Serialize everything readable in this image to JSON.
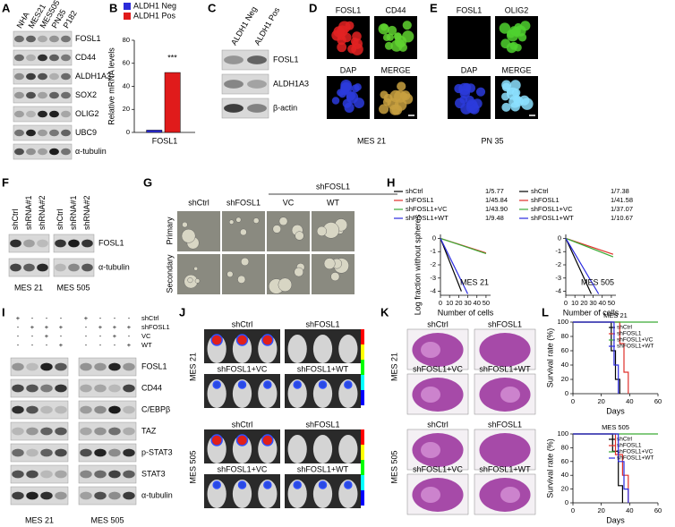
{
  "panels": {
    "A": {
      "letter": "A",
      "lanes": [
        "NHA",
        "MES21",
        "MES505",
        "PN35",
        "P182"
      ],
      "bands": [
        "FOSL1",
        "CD44",
        "ALDH1A3",
        "SOX2",
        "OLIG2",
        "UBC9",
        "α-tubulin"
      ]
    },
    "B": {
      "letter": "B"
    },
    "C": {
      "letter": "C",
      "lanes": [
        "ALDH1 Neg",
        "ALDH1 Pos"
      ],
      "bands": [
        "FOSL1",
        "ALDH1A3",
        "β-actin"
      ]
    },
    "D": {
      "letter": "D",
      "labels": [
        "FOSL1",
        "CD44",
        "DAP",
        "MERGE"
      ],
      "caption": "MES 21"
    },
    "E": {
      "letter": "E",
      "labels": [
        "FOSL1",
        "OLIG2",
        "DAP",
        "MERGE"
      ],
      "caption": "PN 35"
    },
    "F": {
      "letter": "F",
      "lanes": [
        "shCtrl",
        "shRNA#1",
        "shRNA#2",
        "shCtrl",
        "shRNA#1",
        "shRNA#2"
      ],
      "bands": [
        "FOSL1",
        "α-tubulin"
      ],
      "groups": [
        "MES 21",
        "MES 505"
      ]
    },
    "G": {
      "letter": "G",
      "header": "shFOSL1",
      "columns": [
        "shCtrl",
        "shFOSL1",
        "VC",
        "WT"
      ],
      "rows": [
        "Primary",
        "Secondary"
      ]
    },
    "H": {
      "letter": "H"
    },
    "I": {
      "letter": "I",
      "conditions": [
        "shCtrl",
        "shFOSL1",
        "VC",
        "WT"
      ],
      "signs": [
        [
          "+",
          "-",
          "-",
          "-",
          "+",
          "-",
          "-",
          "-"
        ],
        [
          "-",
          "+",
          "+",
          "+",
          "-",
          "+",
          "+",
          "+"
        ],
        [
          "-",
          "-",
          "+",
          "-",
          "-",
          "-",
          "+",
          "-"
        ],
        [
          "-",
          "-",
          "-",
          "+",
          "-",
          "-",
          "-",
          "+"
        ]
      ],
      "bands": [
        "FOSL1",
        "CD44",
        "C/EBPβ",
        "TAZ",
        "p-STAT3",
        "STAT3",
        "α-tubulin"
      ],
      "groups": [
        "MES 21",
        "MES 505"
      ]
    },
    "J": {
      "letter": "J",
      "rows": [
        "MES 21",
        "MES 505"
      ],
      "labels": [
        "shCtrl",
        "shFOSL1",
        "shFOSL1+VC",
        "shFOSL1+WT"
      ]
    },
    "K": {
      "letter": "K",
      "rows": [
        "MES 21",
        "MES 505"
      ],
      "labels": [
        "shCtrl",
        "shFOSL1",
        "shFOSL1+VC",
        "shFOSL1+WT"
      ]
    },
    "L": {
      "letter": "L"
    }
  },
  "chart_data": [
    {
      "type": "bar",
      "ylabel": "Relative mRNA levels",
      "categories": [
        "FOSL1"
      ],
      "series": [
        {
          "name": "ALDH1 Neg",
          "color": "#2b2bd9",
          "values": [
            2
          ]
        },
        {
          "name": "ALDH1 Pos",
          "color": "#e01b1b",
          "values": [
            52
          ]
        }
      ],
      "ylim": [
        0,
        80
      ],
      "yticks": [
        0,
        20,
        40,
        60,
        80
      ],
      "annotation": "***",
      "legend": "above"
    },
    {
      "type": "line",
      "ylabel": "Log fraction without spheres",
      "xlabel": "Number of cells",
      "annotation": "MES 21",
      "xlim": [
        0,
        55
      ],
      "xticks": [
        0,
        10,
        20,
        30,
        40,
        50
      ],
      "ylim": [
        -4.3,
        0.3
      ],
      "yticks": [
        0,
        -1,
        -2,
        -3,
        -4
      ],
      "legend": "above",
      "series": [
        {
          "name": "shCtrl",
          "frequency": "1/5.77",
          "color": "#000000",
          "x": [
            0,
            23
          ],
          "values": [
            0,
            -4
          ]
        },
        {
          "name": "shFOSL1",
          "frequency": "1/45.84",
          "color": "#e0302a",
          "x": [
            0,
            50
          ],
          "values": [
            0,
            -1.1
          ]
        },
        {
          "name": "shFOSL1+VC",
          "frequency": "1/43.90",
          "color": "#3aaa35",
          "x": [
            0,
            50
          ],
          "values": [
            0,
            -1.15
          ]
        },
        {
          "name": "shFOSL1+WT",
          "frequency": "1/9.48",
          "color": "#2a2ae0",
          "x": [
            0,
            30
          ],
          "values": [
            0,
            -4.2
          ]
        }
      ]
    },
    {
      "type": "line",
      "xlabel": "Number of cells",
      "annotation": "MES 505",
      "xlim": [
        0,
        55
      ],
      "xticks": [
        0,
        10,
        20,
        30,
        40,
        50
      ],
      "ylim": [
        -4.3,
        0.3
      ],
      "yticks": [
        0,
        -1,
        -2,
        -3,
        -4
      ],
      "legend": "above",
      "series": [
        {
          "name": "shCtrl",
          "frequency": "1/7.38",
          "color": "#000000",
          "x": [
            0,
            28
          ],
          "values": [
            0,
            -4.2
          ]
        },
        {
          "name": "shFOSL1",
          "frequency": "1/41.58",
          "color": "#e0302a",
          "x": [
            0,
            52
          ],
          "values": [
            0,
            -1.2
          ]
        },
        {
          "name": "shFOSL1+VC",
          "frequency": "1/37.07",
          "color": "#3aaa35",
          "x": [
            0,
            52
          ],
          "values": [
            0,
            -1.4
          ]
        },
        {
          "name": "shFOSL1+WT",
          "frequency": "1/10.67",
          "color": "#2a2ae0",
          "x": [
            0,
            36
          ],
          "values": [
            0,
            -4.2
          ]
        }
      ]
    },
    {
      "type": "line",
      "title": "MES 21",
      "ylabel": "Survival rate (%)",
      "xlabel": "Days",
      "xlim": [
        0,
        60
      ],
      "xticks": [
        0,
        20,
        40,
        60
      ],
      "ylim": [
        0,
        100
      ],
      "yticks": [
        0,
        20,
        40,
        60,
        80,
        100
      ],
      "legend": "upper-right",
      "series": [
        {
          "name": "shCtrl",
          "color": "#000000",
          "x": [
            0,
            27,
            27,
            30,
            30,
            33,
            33
          ],
          "values": [
            100,
            100,
            60,
            60,
            20,
            20,
            0
          ]
        },
        {
          "name": "shFOSL1",
          "color": "#e0302a",
          "x": [
            0,
            33,
            33,
            36,
            36,
            39,
            39
          ],
          "values": [
            100,
            100,
            70,
            70,
            30,
            30,
            0
          ]
        },
        {
          "name": "shFOSL1+VC",
          "color": "#3aaa35",
          "x": [
            0,
            60
          ],
          "values": [
            100,
            100
          ]
        },
        {
          "name": "shFOSL1+WT",
          "color": "#2a2ae0",
          "x": [
            0,
            29,
            29,
            32,
            32
          ],
          "values": [
            100,
            100,
            40,
            40,
            0
          ]
        }
      ]
    },
    {
      "type": "line",
      "title": "MES 505",
      "ylabel": "Survival rate (%)",
      "xlabel": "Days",
      "xlim": [
        0,
        60
      ],
      "xticks": [
        0,
        20,
        40,
        60
      ],
      "ylim": [
        0,
        100
      ],
      "yticks": [
        0,
        20,
        40,
        60,
        80,
        100
      ],
      "legend": "upper-right",
      "series": [
        {
          "name": "shCtrl",
          "color": "#000000",
          "x": [
            0,
            28,
            28,
            32,
            32,
            35,
            35
          ],
          "values": [
            100,
            100,
            75,
            75,
            25,
            25,
            0
          ]
        },
        {
          "name": "shFOSL1",
          "color": "#e0302a",
          "x": [
            0,
            30,
            30,
            35,
            35,
            39,
            39
          ],
          "values": [
            100,
            100,
            70,
            70,
            40,
            40,
            0
          ]
        },
        {
          "name": "shFOSL1+VC",
          "color": "#3aaa35",
          "x": [
            0,
            60
          ],
          "values": [
            100,
            100
          ]
        },
        {
          "name": "shFOSL1+WT",
          "color": "#2a2ae0",
          "x": [
            0,
            32,
            32,
            36,
            36,
            39,
            39
          ],
          "values": [
            100,
            100,
            60,
            60,
            20,
            20,
            0
          ]
        }
      ]
    }
  ]
}
